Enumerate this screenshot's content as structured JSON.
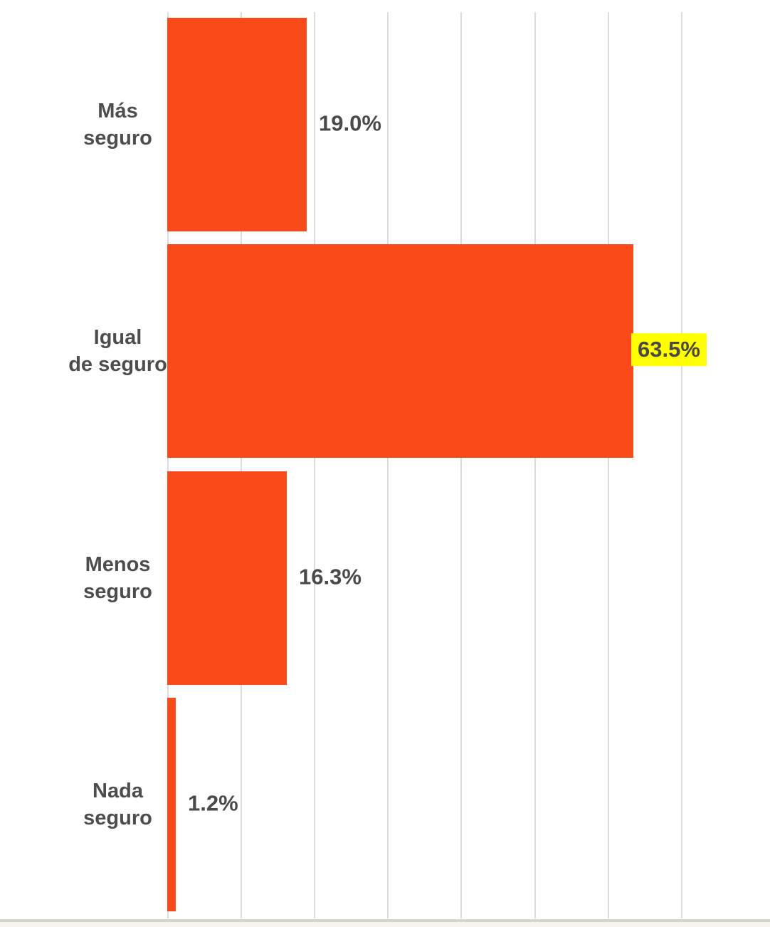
{
  "chart_data": {
    "type": "bar",
    "orientation": "horizontal",
    "categories": [
      "Más seguro",
      "Igual de seguro",
      "Menos seguro",
      "Nada seguro"
    ],
    "category_lines": [
      [
        "Más",
        "seguro"
      ],
      [
        "Igual",
        "de seguro"
      ],
      [
        "Menos",
        "seguro"
      ],
      [
        "Nada",
        "seguro"
      ]
    ],
    "values": [
      19.0,
      63.5,
      16.3,
      1.2
    ],
    "value_labels": [
      "19.0%",
      "63.5%",
      "16.3%",
      "1.2%"
    ],
    "highlighted_index": 1,
    "axis": {
      "min_pct": 0,
      "max_pct_scale": 100,
      "gridline_interval_pct": 10,
      "gridlines_pct": [
        0,
        10,
        20,
        30,
        40,
        50,
        60,
        70
      ],
      "tick_labels_visible": false
    },
    "grid_on": true,
    "legend": null,
    "colors": {
      "bar": "#FA4A19",
      "highlight_bg": "#FFFF00",
      "label_text": "#4D4D4D",
      "value_text": "#4A4A4A",
      "gridline": "#DCDCDC",
      "background": "#FFFFFF",
      "footer_line": "#D6D3CA",
      "footer_strip": "#F6F4EE"
    }
  }
}
